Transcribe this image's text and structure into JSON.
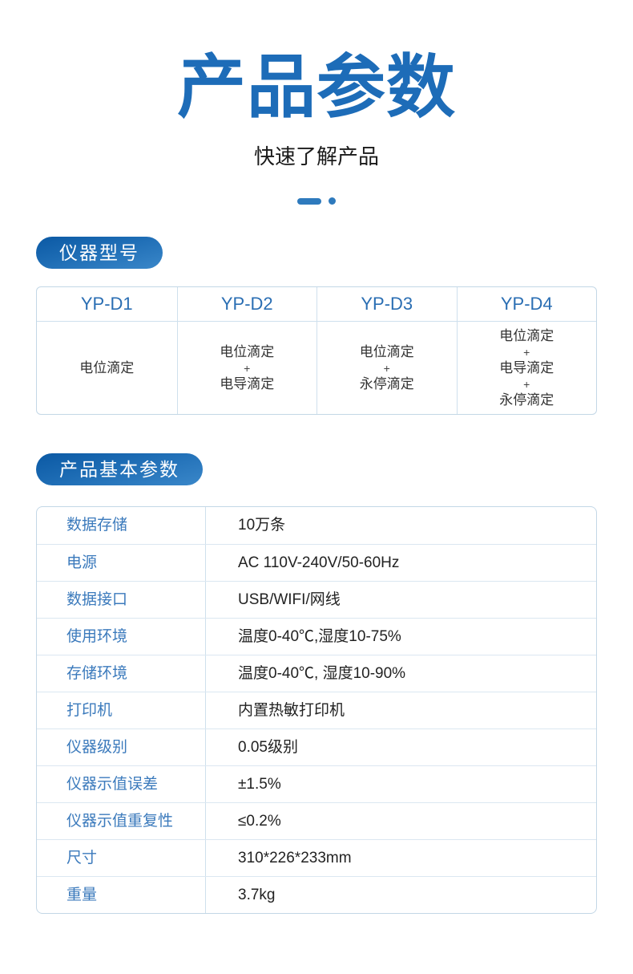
{
  "header": {
    "title": "产品参数",
    "subtitle": "快速了解产品"
  },
  "model": {
    "badge": "仪器型号",
    "columns": [
      {
        "model": "YP-D1",
        "lines": [
          "电位滴定"
        ]
      },
      {
        "model": "YP-D2",
        "lines": [
          "电位滴定",
          "+",
          "电导滴定"
        ]
      },
      {
        "model": "YP-D3",
        "lines": [
          "电位滴定",
          "+",
          "永停滴定"
        ]
      },
      {
        "model": "YP-D4",
        "lines": [
          "电位滴定",
          "+",
          "电导滴定",
          "+",
          "永停滴定"
        ]
      }
    ]
  },
  "specs": {
    "badge": "产品基本参数",
    "rows": [
      {
        "label": "数据存储",
        "value": "10万条"
      },
      {
        "label": "电源",
        "value": "AC 110V-240V/50-60Hz"
      },
      {
        "label": "数据接口",
        "value": "USB/WIFI/网线"
      },
      {
        "label": "使用环境",
        "value": "温度0-40℃,湿度10-75%"
      },
      {
        "label": "存储环境",
        "value": "温度0-40℃, 湿度10-90%"
      },
      {
        "label": "打印机",
        "value": "内置热敏打印机"
      },
      {
        "label": "仪器级别",
        "value": "0.05级别"
      },
      {
        "label": "仪器示值误差",
        "value": "±1.5%"
      },
      {
        "label": "仪器示值重复性",
        "value": "≤0.2%"
      },
      {
        "label": "尺寸",
        "value": "310*226*233mm"
      },
      {
        "label": "重量",
        "value": "3.7kg"
      }
    ]
  },
  "colors": {
    "accent_blue": "#1d6cb8",
    "badge_gradient_start": "#0b59a4",
    "badge_gradient_end": "#3a87c9",
    "table_border": "#c3d7e6",
    "table_inner_border": "#cfe0ed",
    "header_text_blue": "#2a6eb3",
    "label_blue": "#3b7abc",
    "body_text": "#333333",
    "background": "#ffffff"
  }
}
